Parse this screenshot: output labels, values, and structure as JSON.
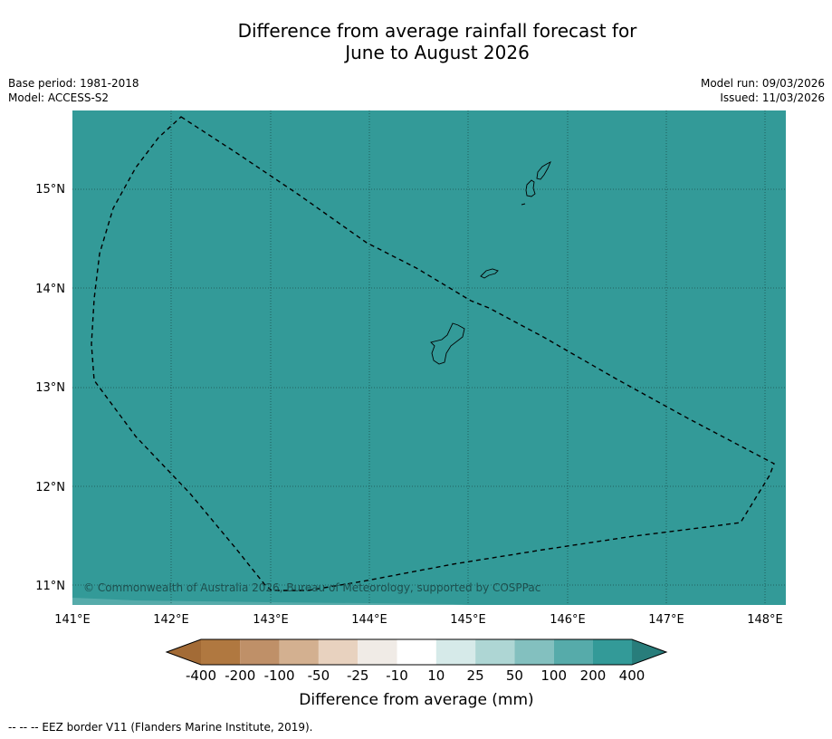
{
  "title_line1": "Difference from average rainfall forecast for",
  "title_line2": "June to August 2026",
  "meta": {
    "base_period": "Base period: 1981-2018",
    "model": "Model: ACCESS-S2",
    "model_run": "Model run: 09/03/2026",
    "issued": "Issued: 11/03/2026"
  },
  "map": {
    "fill_color": "#339a98",
    "lon_labels": [
      "141°E",
      "142°E",
      "143°E",
      "144°E",
      "145°E",
      "146°E",
      "147°E",
      "148°E"
    ],
    "lat_labels": [
      "15°N",
      "14°N",
      "13°N",
      "12°N",
      "11°N"
    ],
    "copyright": "© Commonwealth of Australia 2026, Bureau of Meteorology, supported by COSPPac"
  },
  "colorbar": {
    "title": "Difference from average (mm)",
    "tick_labels": [
      "-400",
      "-200",
      "-100",
      "-50",
      "-25",
      "-10",
      "10",
      "25",
      "50",
      "100",
      "200",
      "400"
    ],
    "colors": [
      "#a36b36",
      "#b07840",
      "#bf9068",
      "#d3b090",
      "#e8d2bf",
      "#f0ebe6",
      "#ffffff",
      "#d6eae9",
      "#aed6d4",
      "#83c0bf",
      "#56abaa",
      "#339a98",
      "#287d7b"
    ]
  },
  "footnote": "--  --  -- EEZ border V11 (Flanders Marine Institute, 2019)."
}
